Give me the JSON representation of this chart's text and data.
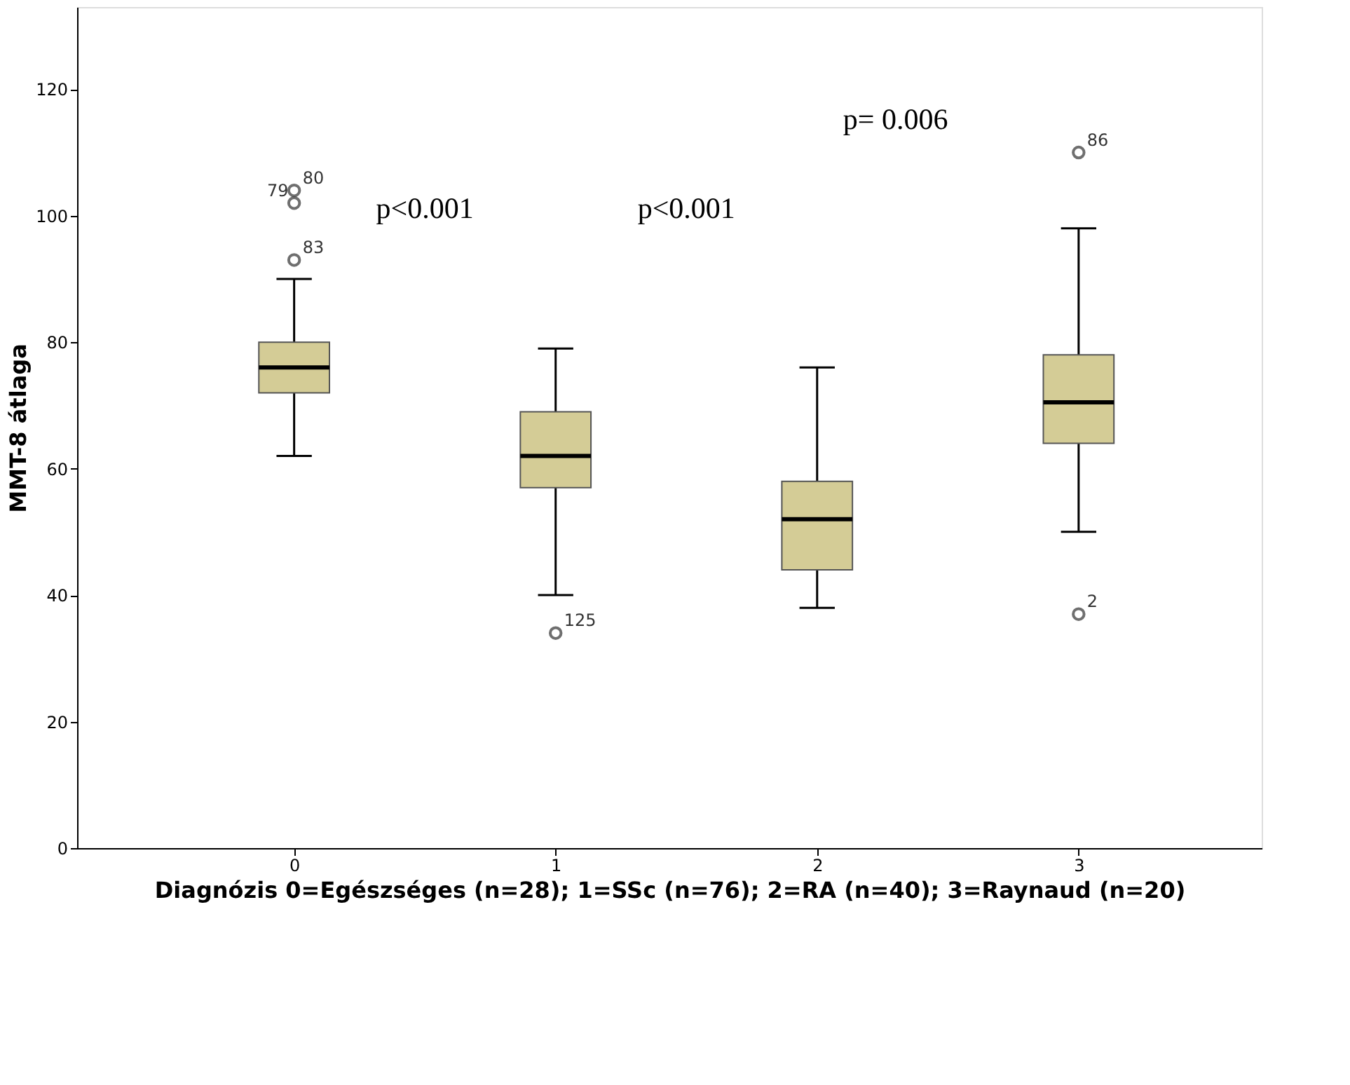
{
  "chart_data": {
    "type": "box",
    "xlabel": "Diagnózis 0=Egészséges (n=28); 1=SSc (n=76); 2=RA (n=40); 3=Raynaud (n=20)",
    "ylabel": "MMT-8 átlaga",
    "categories": [
      "0",
      "1",
      "2",
      "3"
    ],
    "ylim": [
      0,
      133
    ],
    "yticks": [
      0,
      20,
      40,
      60,
      80,
      100,
      120
    ],
    "grid": false,
    "series": [
      {
        "color": "#d4cc96",
        "boxes": [
          {
            "low": 62,
            "q1": 72,
            "median": 76,
            "q3": 80,
            "high": 90,
            "outliers": [
              102,
              104,
              93
            ]
          },
          {
            "low": 40,
            "q1": 57,
            "median": 62,
            "q3": 69,
            "high": 79,
            "outliers": [
              34
            ]
          },
          {
            "low": 38,
            "q1": 44,
            "median": 52,
            "q3": 58,
            "high": 76
          },
          {
            "low": 50,
            "q1": 64,
            "median": 70.5,
            "q3": 78,
            "high": 98,
            "outliers": [
              110,
              37
            ]
          }
        ]
      }
    ],
    "annotations": [
      "79",
      "80",
      "83",
      "125",
      "86",
      "2",
      "p<0.001",
      "p<0.001",
      "p= 0.006"
    ]
  }
}
